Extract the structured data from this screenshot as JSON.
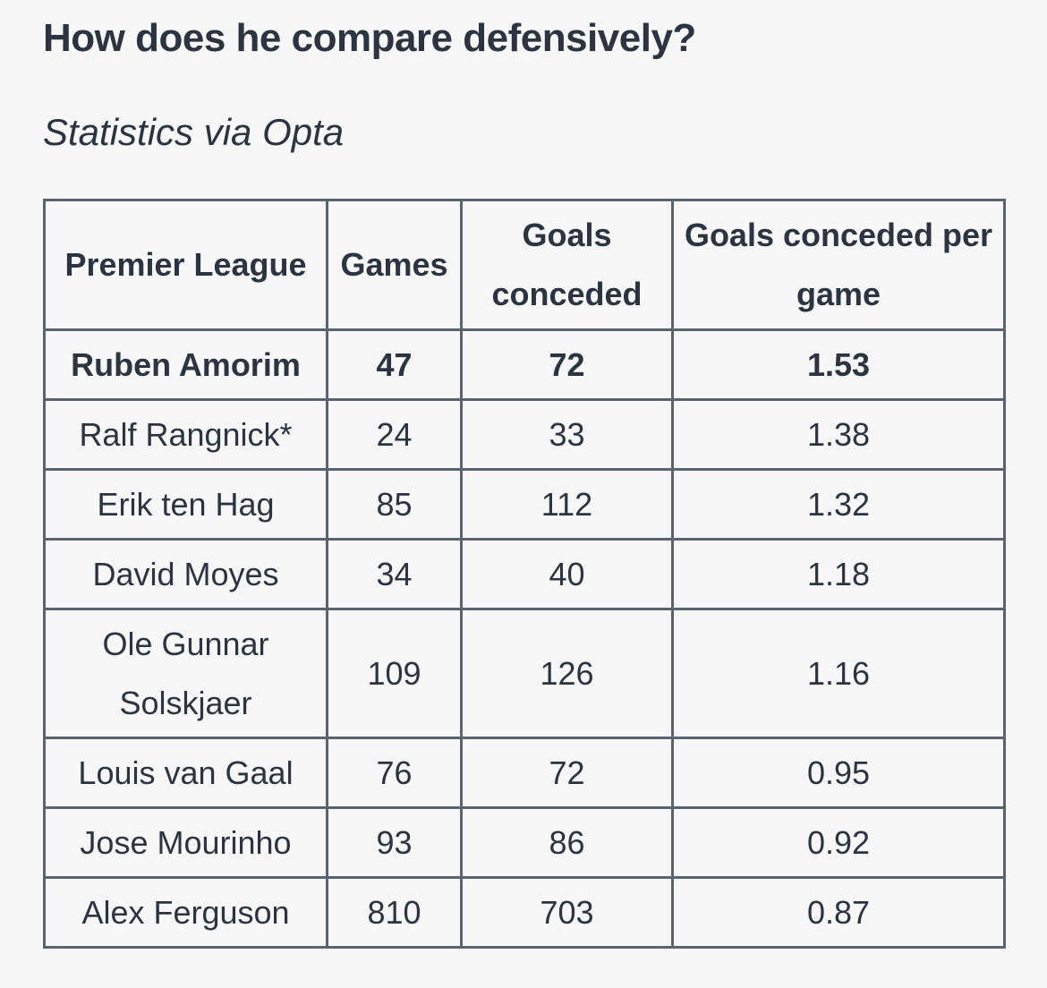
{
  "title": "How does he compare defensively?",
  "subtitle": "Statistics via Opta",
  "chart_data": {
    "type": "table",
    "columns": [
      "Premier League",
      "Games",
      "Goals conceded",
      "Goals conceded per game"
    ],
    "rows": [
      {
        "manager": "Ruben Amorim",
        "games": "47",
        "goals_conceded": "72",
        "per_game": "1.53",
        "highlight": true
      },
      {
        "manager": "Ralf Rangnick*",
        "games": "24",
        "goals_conceded": "33",
        "per_game": "1.38"
      },
      {
        "manager": "Erik ten Hag",
        "games": "85",
        "goals_conceded": "112",
        "per_game": "1.32"
      },
      {
        "manager": "David Moyes",
        "games": "34",
        "goals_conceded": "40",
        "per_game": "1.18"
      },
      {
        "manager": "Ole Gunnar Solskjaer",
        "games": "109",
        "goals_conceded": "126",
        "per_game": "1.16"
      },
      {
        "manager": "Louis van Gaal",
        "games": "76",
        "goals_conceded": "72",
        "per_game": "0.95"
      },
      {
        "manager": "Jose Mourinho",
        "games": "93",
        "goals_conceded": "86",
        "per_game": "0.92"
      },
      {
        "manager": "Alex Ferguson",
        "games": "810",
        "goals_conceded": "703",
        "per_game": "0.87"
      }
    ]
  }
}
